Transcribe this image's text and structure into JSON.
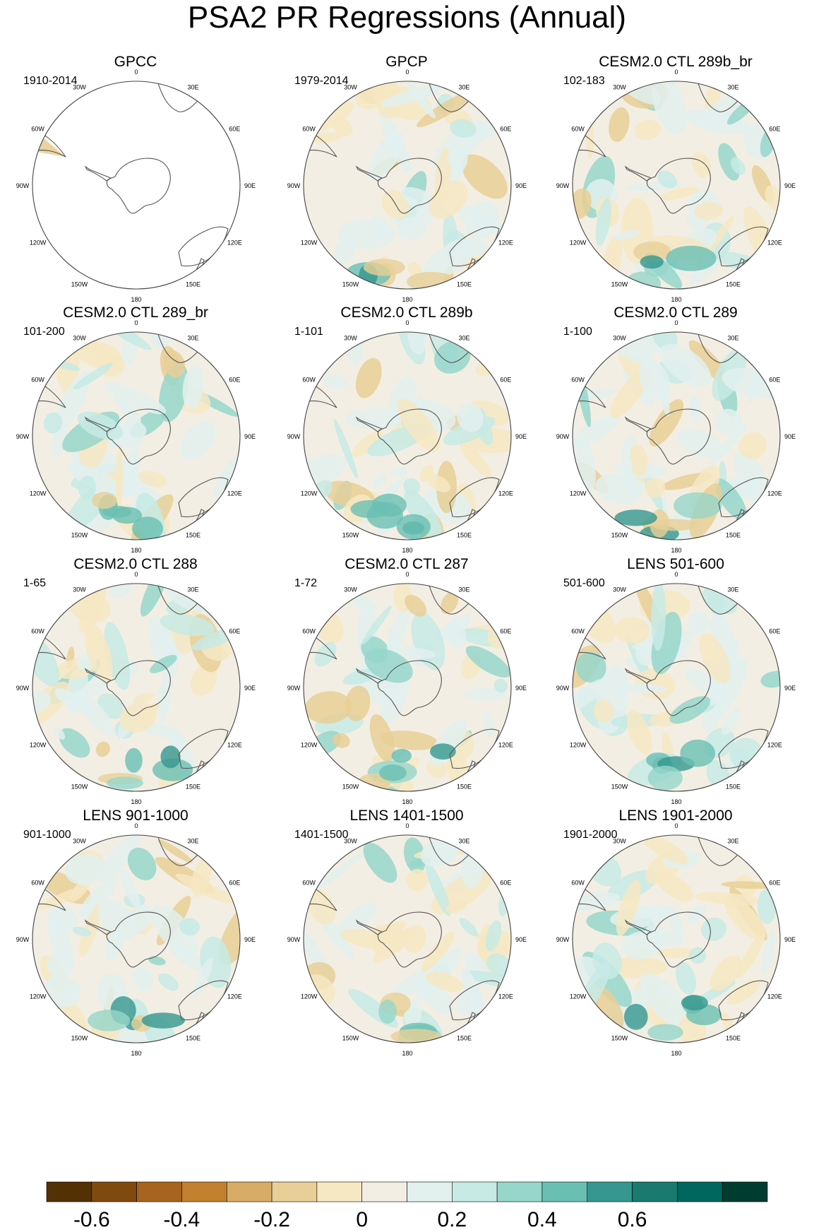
{
  "title": "PSA2 PR Regressions (Annual)",
  "longitude_labels": [
    "0",
    "30E",
    "60E",
    "90E",
    "120E",
    "150E",
    "180",
    "150W",
    "120W",
    "90W",
    "60W",
    "30W"
  ],
  "panels": [
    {
      "title": "GPCC",
      "period": "1910-2014"
    },
    {
      "title": "GPCP",
      "period": "1979-2014"
    },
    {
      "title": "CESM2.0 CTL 289b_br",
      "period": "102-183"
    },
    {
      "title": "CESM2.0 CTL 289_br",
      "period": "101-200"
    },
    {
      "title": "CESM2.0 CTL 289b",
      "period": "1-101"
    },
    {
      "title": "CESM2.0 CTL 289",
      "period": "1-100"
    },
    {
      "title": "CESM2.0 CTL 288",
      "period": "1-65"
    },
    {
      "title": "CESM2.0 CTL 287",
      "period": "1-72"
    },
    {
      "title": "LENS 501-600",
      "period": "501-600"
    },
    {
      "title": "LENS 901-1000",
      "period": "901-1000"
    },
    {
      "title": "LENS 1401-1500",
      "period": "1401-1500"
    },
    {
      "title": "LENS 1901-2000",
      "period": "1901-2000"
    }
  ],
  "colorbar": {
    "colors": [
      "#543005",
      "#7f4a0d",
      "#a66420",
      "#c2812f",
      "#d6ac66",
      "#e8cf97",
      "#f6e8c3",
      "#f3eee3",
      "#e2f0ee",
      "#c7eae5",
      "#96d6cb",
      "#6abfb3",
      "#35978f",
      "#1a7a70",
      "#01665e",
      "#003c30"
    ],
    "tick_labels": [
      "-0.6",
      "-0.4",
      "-0.2",
      "0",
      "0.2",
      "0.4",
      "0.6"
    ]
  }
}
